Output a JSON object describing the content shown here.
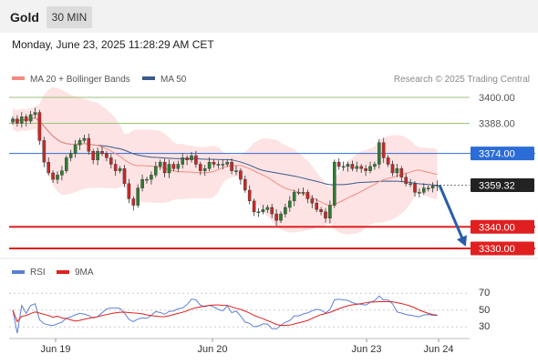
{
  "instrument": "Gold",
  "timeframe": "30 MIN",
  "datetime": "Monday, June 23, 2025 11:28:29 AM CET",
  "legend": [
    {
      "label": "MA 20 + Bollinger Bands",
      "color": "#f28b82"
    },
    {
      "label": "MA 50",
      "color": "#3a5a8c"
    }
  ],
  "credit": "Research © 2025 Trading Central",
  "colors": {
    "up": "#2e7d32",
    "down": "#c62828",
    "resistance": "#9bc27a",
    "pivot": "#2b6cd6",
    "support": "#e02020",
    "bb_fill": "#fde3e3",
    "arrow": "#2a5ca8"
  },
  "chart_data": [
    {
      "type": "candlestick",
      "title": "Gold 30 MIN",
      "x_tick_labels": [
        "Jun 19",
        "Jun 20",
        "Jun 23",
        "Jun 24"
      ],
      "ylim": [
        3323,
        3407
      ],
      "levels": [
        {
          "label": "3400.00",
          "value": 3400.0,
          "kind": "resistance"
        },
        {
          "label": "3388.00",
          "value": 3388.0,
          "kind": "resistance"
        },
        {
          "label": "3374.00",
          "value": 3374.0,
          "kind": "pivot"
        },
        {
          "label": "3359.32",
          "value": 3359.32,
          "kind": "last"
        },
        {
          "label": "3340.00",
          "value": 3340.0,
          "kind": "support"
        },
        {
          "label": "3330.00",
          "value": 3330.0,
          "kind": "support"
        }
      ],
      "closes": [
        3390,
        3388,
        3391,
        3389,
        3392,
        3393,
        3380,
        3370,
        3365,
        3362,
        3364,
        3366,
        3372,
        3374,
        3378,
        3380,
        3381,
        3375,
        3371,
        3375,
        3374,
        3372,
        3369,
        3366,
        3367,
        3360,
        3353,
        3350,
        3358,
        3362,
        3362,
        3364,
        3368,
        3370,
        3365,
        3369,
        3367,
        3369,
        3372,
        3371,
        3373,
        3369,
        3366,
        3367,
        3370,
        3369,
        3369,
        3369,
        3370,
        3366,
        3366,
        3362,
        3357,
        3352,
        3347,
        3347,
        3348,
        3349,
        3346,
        3343,
        3346,
        3349,
        3352,
        3356,
        3356,
        3356,
        3353,
        3351,
        3348,
        3347,
        3344,
        3350,
        3370,
        3368,
        3368,
        3369,
        3367,
        3368,
        3367,
        3366,
        3368,
        3369,
        3379,
        3372,
        3369,
        3365,
        3367,
        3363,
        3360,
        3360,
        3356,
        3356,
        3358,
        3358,
        3359,
        3359.32
      ],
      "forecast_arrow": {
        "from": 3359.32,
        "to": 3330.0
      },
      "sub_chart": {
        "title": "RSI",
        "legend": [
          {
            "label": "RSI",
            "color": "#5b7fd6"
          },
          {
            "label": "9MA",
            "color": "#e02020"
          }
        ],
        "y_tick_labels": [
          "70",
          "50",
          "30"
        ],
        "ylim": [
          20,
          80
        ]
      }
    }
  ]
}
